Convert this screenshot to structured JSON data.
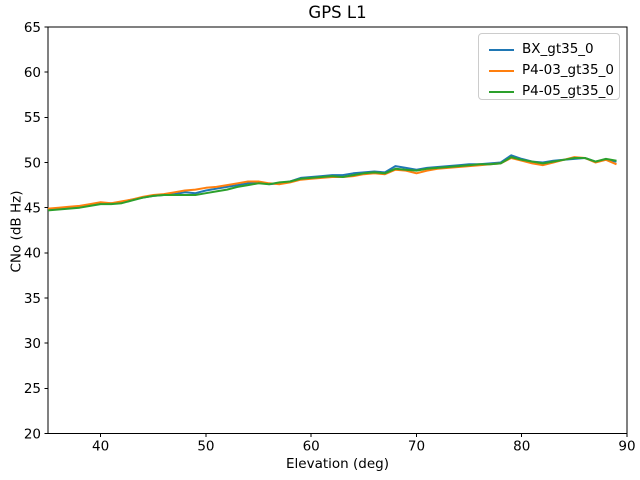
{
  "chart_data": {
    "type": "line",
    "title": "GPS L1",
    "xlabel": "Elevation (deg)",
    "ylabel": "CNo (dB Hz)",
    "xlim": [
      35,
      90
    ],
    "ylim": [
      20,
      65
    ],
    "xticks": [
      40,
      50,
      60,
      70,
      80,
      90
    ],
    "yticks": [
      20,
      25,
      30,
      35,
      40,
      45,
      50,
      55,
      60,
      65
    ],
    "grid": false,
    "legend_position": "upper right",
    "legend_border_color": "#cccccc",
    "x": [
      35,
      36,
      37,
      38,
      39,
      40,
      41,
      42,
      43,
      44,
      45,
      46,
      47,
      48,
      49,
      50,
      51,
      52,
      53,
      54,
      55,
      56,
      57,
      58,
      59,
      60,
      61,
      62,
      63,
      64,
      65,
      66,
      67,
      68,
      69,
      70,
      71,
      72,
      73,
      74,
      75,
      76,
      77,
      78,
      79,
      80,
      81,
      82,
      83,
      84,
      85,
      86,
      87,
      88,
      89
    ],
    "series": [
      {
        "name": "BX_gt35_0",
        "color": "#1f77b4",
        "values": [
          44.9,
          44.9,
          45.0,
          45.1,
          45.3,
          45.5,
          45.5,
          45.6,
          45.9,
          46.1,
          46.3,
          46.4,
          46.5,
          46.7,
          46.6,
          46.9,
          47.1,
          47.3,
          47.5,
          47.7,
          47.8,
          47.6,
          47.7,
          47.9,
          48.3,
          48.4,
          48.5,
          48.6,
          48.6,
          48.8,
          48.9,
          49.0,
          48.9,
          49.6,
          49.4,
          49.2,
          49.4,
          49.5,
          49.6,
          49.7,
          49.8,
          49.8,
          49.9,
          50.0,
          50.8,
          50.4,
          50.1,
          50.0,
          50.2,
          50.3,
          50.4,
          50.5,
          50.1,
          50.3,
          50.1
        ]
      },
      {
        "name": "P4-03_gt35_0",
        "color": "#ff7f0e",
        "values": [
          44.9,
          45.0,
          45.1,
          45.2,
          45.4,
          45.6,
          45.5,
          45.7,
          45.9,
          46.2,
          46.4,
          46.5,
          46.7,
          46.9,
          47.0,
          47.2,
          47.3,
          47.5,
          47.7,
          47.9,
          47.9,
          47.7,
          47.6,
          47.8,
          48.1,
          48.2,
          48.3,
          48.4,
          48.4,
          48.5,
          48.7,
          48.8,
          48.7,
          49.2,
          49.1,
          48.8,
          49.1,
          49.3,
          49.4,
          49.5,
          49.6,
          49.7,
          49.8,
          49.9,
          50.5,
          50.2,
          49.9,
          49.7,
          50.0,
          50.3,
          50.6,
          50.5,
          50.0,
          50.3,
          49.8
        ]
      },
      {
        "name": "P4-05_gt35_0",
        "color": "#2ca02c",
        "values": [
          44.7,
          44.8,
          44.9,
          45.0,
          45.2,
          45.4,
          45.4,
          45.5,
          45.8,
          46.1,
          46.3,
          46.4,
          46.4,
          46.4,
          46.4,
          46.6,
          46.8,
          47.0,
          47.3,
          47.5,
          47.7,
          47.6,
          47.8,
          47.9,
          48.2,
          48.3,
          48.4,
          48.5,
          48.4,
          48.6,
          48.8,
          48.9,
          48.8,
          49.3,
          49.2,
          49.1,
          49.3,
          49.4,
          49.5,
          49.6,
          49.7,
          49.8,
          49.8,
          49.9,
          50.6,
          50.3,
          50.1,
          49.9,
          50.1,
          50.3,
          50.5,
          50.5,
          50.1,
          50.4,
          50.2
        ]
      }
    ]
  }
}
